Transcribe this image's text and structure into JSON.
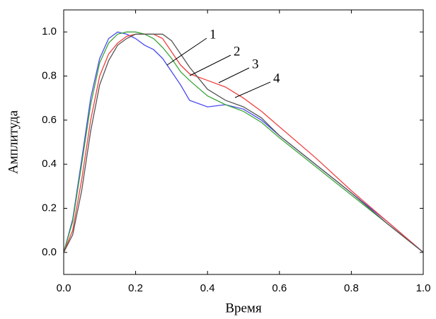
{
  "chart_data": {
    "type": "line",
    "xlabel": "Время",
    "ylabel": "Амплитуда",
    "x": [
      0,
      0.025,
      0.05,
      0.075,
      0.1,
      0.125,
      0.15,
      0.175,
      0.2,
      0.225,
      0.25,
      0.275,
      0.3,
      0.325,
      0.35,
      0.4,
      0.45,
      0.5,
      0.55,
      0.6,
      0.7,
      0.8,
      0.9,
      1.0
    ],
    "series": [
      {
        "name": "1",
        "color": "#4a4af0",
        "values": [
          0,
          0.15,
          0.42,
          0.7,
          0.88,
          0.97,
          1.0,
          0.99,
          0.97,
          0.94,
          0.92,
          0.88,
          0.82,
          0.76,
          0.69,
          0.66,
          0.67,
          0.65,
          0.6,
          0.53,
          0.4,
          0.27,
          0.14,
          0
        ]
      },
      {
        "name": "2",
        "color": "#3aa53a",
        "values": [
          0,
          0.14,
          0.4,
          0.67,
          0.86,
          0.95,
          0.99,
          1.0,
          1.0,
          0.99,
          0.97,
          0.93,
          0.88,
          0.82,
          0.78,
          0.71,
          0.67,
          0.64,
          0.59,
          0.52,
          0.39,
          0.26,
          0.13,
          0
        ]
      },
      {
        "name": "3",
        "color": "#f04040",
        "values": [
          0,
          0.1,
          0.33,
          0.6,
          0.8,
          0.9,
          0.95,
          0.98,
          0.99,
          0.99,
          0.99,
          0.97,
          0.91,
          0.85,
          0.81,
          0.78,
          0.75,
          0.7,
          0.64,
          0.57,
          0.43,
          0.28,
          0.14,
          0
        ]
      },
      {
        "name": "4",
        "color": "#555555",
        "values": [
          0,
          0.08,
          0.28,
          0.55,
          0.76,
          0.87,
          0.94,
          0.97,
          0.99,
          0.99,
          0.99,
          0.99,
          0.96,
          0.9,
          0.84,
          0.74,
          0.69,
          0.66,
          0.61,
          0.53,
          0.4,
          0.27,
          0.13,
          0
        ]
      }
    ],
    "xlim": [
      0,
      1
    ],
    "ylim": [
      -0.1,
      1.1
    ],
    "xticks": [
      {
        "value": 0,
        "label": "0.0"
      },
      {
        "value": 0.2,
        "label": "0.2"
      },
      {
        "value": 0.4,
        "label": "0.4"
      },
      {
        "value": 0.6,
        "label": "0.6"
      },
      {
        "value": 0.8,
        "label": "0.8"
      },
      {
        "value": 1,
        "label": "1.0"
      }
    ],
    "yticks": [
      {
        "value": 0,
        "label": "0.0"
      },
      {
        "value": 0.2,
        "label": "0.2"
      },
      {
        "value": 0.4,
        "label": "0.4"
      },
      {
        "value": 0.6,
        "label": "0.6"
      },
      {
        "value": 0.8,
        "label": "0.8"
      },
      {
        "value": 1,
        "label": "1.0"
      }
    ]
  }
}
